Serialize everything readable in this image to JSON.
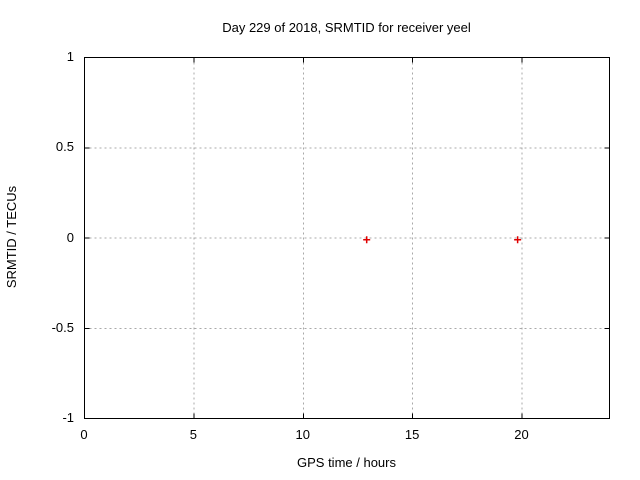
{
  "chart_data": {
    "type": "scatter",
    "title": "Day 229 of 2018, SRMTID for receiver yeel",
    "xlabel": "GPS time / hours",
    "ylabel": "SRMTID / TECUs",
    "xlim": [
      0,
      24
    ],
    "ylim": [
      -1,
      1
    ],
    "xticks": [
      0,
      5,
      10,
      15,
      20
    ],
    "yticks": [
      -1,
      -0.5,
      0,
      0.5,
      1
    ],
    "grid": true,
    "legend": "none",
    "series": [
      {
        "name": "SRMTID",
        "marker": "plus",
        "color": "#e00000",
        "points": [
          {
            "x": 12.9,
            "y": -0.01
          },
          {
            "x": 19.8,
            "y": -0.01
          }
        ]
      }
    ],
    "colors": {
      "background": "#ffffff",
      "border": "#000000",
      "grid": "#a9a9a9",
      "text": "#000000"
    }
  }
}
